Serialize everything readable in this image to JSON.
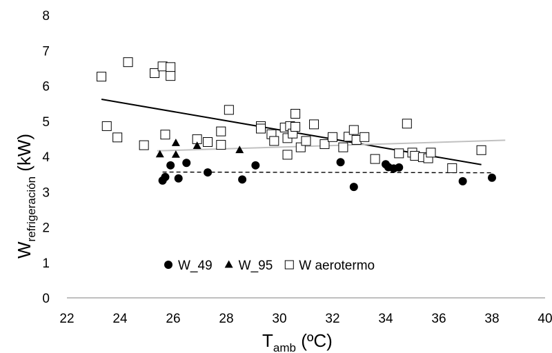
{
  "chart_data": {
    "type": "scatter",
    "title": "",
    "xlabel": {
      "main": "T",
      "sub": "amb",
      "tail": " (ºC)"
    },
    "ylabel": {
      "main": "W",
      "sub": "refrigeración",
      "tail": " (kW)"
    },
    "xlim": [
      22,
      40
    ],
    "ylim": [
      0,
      8
    ],
    "xticks": [
      22,
      24,
      26,
      28,
      30,
      32,
      34,
      36,
      38,
      40
    ],
    "yticks": [
      0,
      1,
      2,
      3,
      4,
      5,
      6,
      7,
      8
    ],
    "grid": false,
    "legend_position": "bottom-left",
    "series": [
      {
        "name": "W_49",
        "marker": "circle",
        "color": "#000000",
        "points": [
          [
            25.6,
            3.32
          ],
          [
            25.7,
            3.42
          ],
          [
            25.9,
            3.75
          ],
          [
            26.2,
            3.38
          ],
          [
            26.5,
            3.82
          ],
          [
            27.3,
            3.55
          ],
          [
            28.6,
            3.35
          ],
          [
            29.1,
            3.75
          ],
          [
            32.3,
            3.84
          ],
          [
            32.8,
            3.14
          ],
          [
            34.0,
            3.78
          ],
          [
            34.1,
            3.7
          ],
          [
            34.3,
            3.66
          ],
          [
            34.5,
            3.69
          ],
          [
            36.9,
            3.3
          ],
          [
            38.0,
            3.4
          ]
        ]
      },
      {
        "name": "W_95",
        "marker": "triangle",
        "color": "#000000",
        "points": [
          [
            25.5,
            4.06
          ],
          [
            26.1,
            4.38
          ],
          [
            26.1,
            4.05
          ],
          [
            26.9,
            4.3
          ],
          [
            28.5,
            4.18
          ]
        ]
      },
      {
        "name": "W aerotermo",
        "marker": "square",
        "color": "#000000",
        "points": [
          [
            23.3,
            6.26
          ],
          [
            23.5,
            4.86
          ],
          [
            23.9,
            4.54
          ],
          [
            24.3,
            6.67
          ],
          [
            24.9,
            4.32
          ],
          [
            25.3,
            6.36
          ],
          [
            25.6,
            6.55
          ],
          [
            25.9,
            6.53
          ],
          [
            25.9,
            6.28
          ],
          [
            25.7,
            4.62
          ],
          [
            26.9,
            4.49
          ],
          [
            27.3,
            4.41
          ],
          [
            27.8,
            4.33
          ],
          [
            27.8,
            4.71
          ],
          [
            28.1,
            5.32
          ],
          [
            29.3,
            4.86
          ],
          [
            29.3,
            4.79
          ],
          [
            29.7,
            4.63
          ],
          [
            29.8,
            4.44
          ],
          [
            30.2,
            4.82
          ],
          [
            30.3,
            4.52
          ],
          [
            30.3,
            4.05
          ],
          [
            30.4,
            4.86
          ],
          [
            30.5,
            4.65
          ],
          [
            30.6,
            4.84
          ],
          [
            30.6,
            5.21
          ],
          [
            30.8,
            4.26
          ],
          [
            31.0,
            4.44
          ],
          [
            31.3,
            4.91
          ],
          [
            31.7,
            4.35
          ],
          [
            32.0,
            4.55
          ],
          [
            32.4,
            4.26
          ],
          [
            32.6,
            4.56
          ],
          [
            32.8,
            4.75
          ],
          [
            32.9,
            4.47
          ],
          [
            33.2,
            4.55
          ],
          [
            33.6,
            3.93
          ],
          [
            34.5,
            4.09
          ],
          [
            34.8,
            4.93
          ],
          [
            35.0,
            4.11
          ],
          [
            35.1,
            4.02
          ],
          [
            35.4,
            3.98
          ],
          [
            35.6,
            3.95
          ],
          [
            35.7,
            4.11
          ],
          [
            36.5,
            3.67
          ],
          [
            37.6,
            4.18
          ]
        ]
      }
    ],
    "trendlines": [
      {
        "series": "W aerotermo",
        "style": "solid",
        "color": "#000000",
        "x": [
          23.3,
          37.6
        ],
        "y": [
          5.62,
          3.77
        ]
      },
      {
        "series": "W_95",
        "style": "solid",
        "color": "#c0c0c0",
        "x": [
          25.4,
          38.5
        ],
        "y": [
          4.16,
          4.46
        ]
      },
      {
        "series": "W_49",
        "style": "dashed",
        "color": "#000000",
        "x": [
          25.6,
          38.0
        ],
        "y": [
          3.56,
          3.54
        ]
      }
    ]
  }
}
